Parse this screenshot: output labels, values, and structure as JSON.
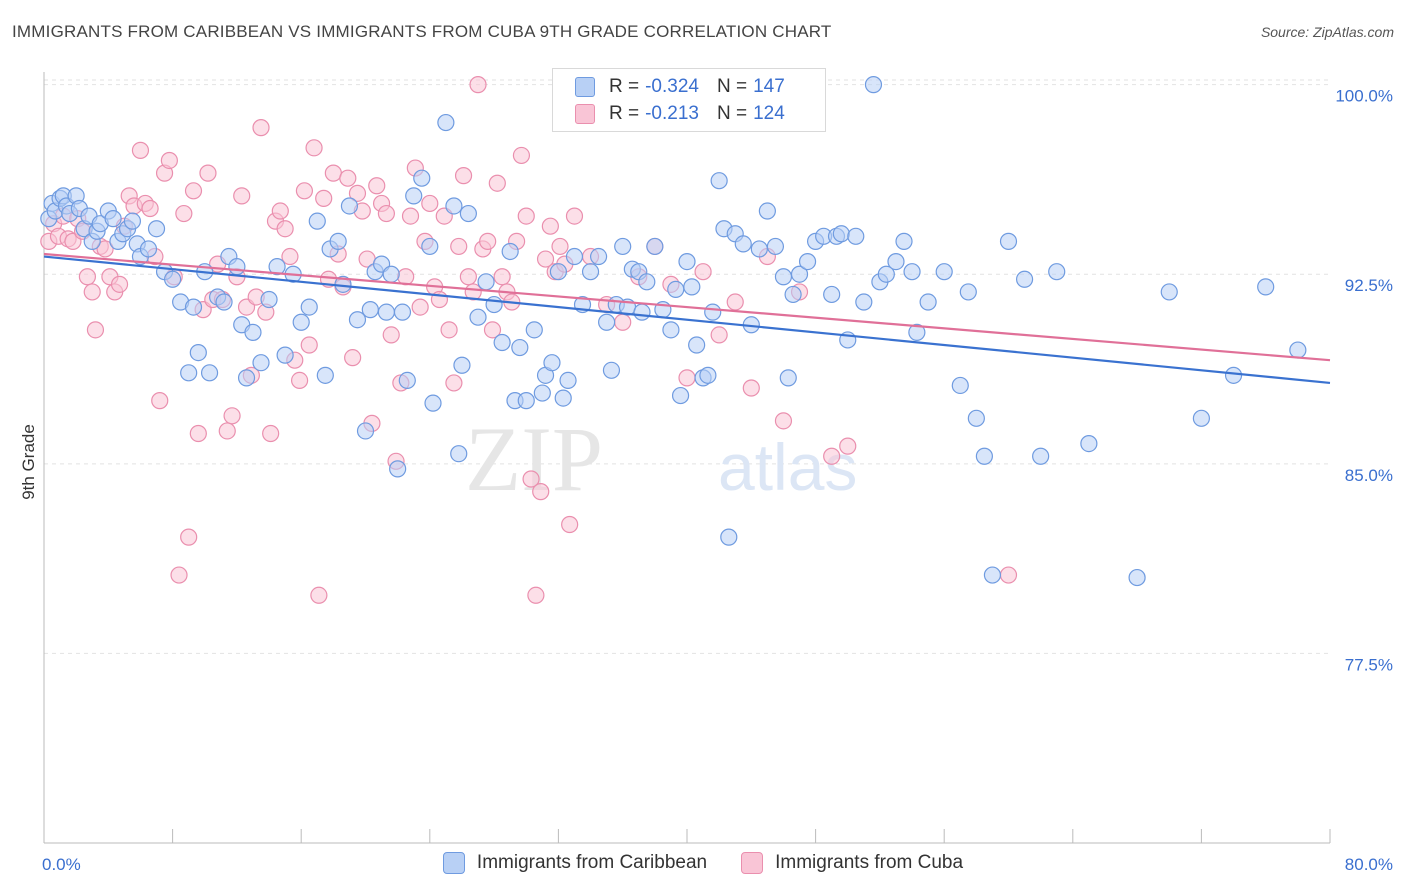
{
  "header": {
    "title": "IMMIGRANTS FROM CARIBBEAN VS IMMIGRANTS FROM CUBA 9TH GRADE CORRELATION CHART",
    "source": "Source: ZipAtlas.com"
  },
  "legend": {
    "r_label": "R =",
    "n_label": "N =",
    "series": [
      {
        "r": "-0.324",
        "n": "147"
      },
      {
        "r": "-0.213",
        "n": "124"
      }
    ]
  },
  "watermark": {
    "zip": "ZIP",
    "atlas": "atlas"
  },
  "colors": {
    "blue_fill": "#b8d0f5",
    "blue_stroke": "#6f9be0",
    "blue_line": "#3a72d0",
    "pink_fill": "#f9c5d6",
    "pink_stroke": "#ea8fae",
    "pink_line": "#e07098",
    "tick_label": "#3a6fcf"
  },
  "chart_data": {
    "type": "scatter",
    "title": "IMMIGRANTS FROM CARIBBEAN VS IMMIGRANTS FROM CUBA 9TH GRADE CORRELATION CHART",
    "xlabel": "",
    "ylabel": "9th Grade",
    "xlim": [
      0,
      80
    ],
    "ylim": [
      70.0,
      100.5
    ],
    "x_tick_labels": [
      "0.0%",
      "80.0%"
    ],
    "y_ticks": [
      77.5,
      85.0,
      92.5,
      100.0
    ],
    "y_tick_labels": [
      "77.5%",
      "85.0%",
      "92.5%",
      "100.0%"
    ],
    "grid": true,
    "legend_position": "top-center",
    "series": [
      {
        "name": "Immigrants from Caribbean",
        "color": "#6f9be0",
        "r": -0.324,
        "n": 147,
        "trend": {
          "x": [
            0,
            80
          ],
          "y": [
            93.2,
            88.2
          ]
        },
        "points": [
          [
            0.3,
            94.7
          ],
          [
            0.5,
            95.3
          ],
          [
            0.7,
            95.0
          ],
          [
            1.0,
            95.5
          ],
          [
            1.2,
            95.6
          ],
          [
            1.4,
            95.2
          ],
          [
            1.6,
            94.9
          ],
          [
            2.0,
            95.6
          ],
          [
            2.2,
            95.1
          ],
          [
            2.5,
            94.3
          ],
          [
            2.8,
            94.8
          ],
          [
            3.0,
            93.8
          ],
          [
            3.3,
            94.2
          ],
          [
            3.5,
            94.5
          ],
          [
            4.0,
            95.0
          ],
          [
            4.3,
            94.7
          ],
          [
            4.6,
            93.8
          ],
          [
            4.9,
            94.1
          ],
          [
            5.2,
            94.3
          ],
          [
            5.5,
            94.6
          ],
          [
            5.8,
            93.7
          ],
          [
            6.0,
            93.2
          ],
          [
            6.5,
            93.5
          ],
          [
            7.0,
            94.3
          ],
          [
            7.5,
            92.6
          ],
          [
            8.0,
            92.3
          ],
          [
            8.5,
            91.4
          ],
          [
            9.0,
            88.6
          ],
          [
            9.3,
            91.2
          ],
          [
            9.6,
            89.4
          ],
          [
            10.0,
            92.6
          ],
          [
            10.3,
            88.6
          ],
          [
            10.8,
            91.6
          ],
          [
            11.2,
            91.4
          ],
          [
            11.5,
            93.2
          ],
          [
            12.0,
            92.8
          ],
          [
            12.3,
            90.5
          ],
          [
            12.6,
            88.4
          ],
          [
            13.0,
            90.2
          ],
          [
            13.5,
            89.0
          ],
          [
            14.0,
            91.5
          ],
          [
            14.5,
            92.8
          ],
          [
            15.0,
            89.3
          ],
          [
            15.5,
            92.5
          ],
          [
            16.0,
            90.6
          ],
          [
            16.5,
            91.2
          ],
          [
            17.0,
            94.6
          ],
          [
            17.5,
            88.5
          ],
          [
            17.8,
            93.5
          ],
          [
            18.3,
            93.8
          ],
          [
            18.6,
            92.1
          ],
          [
            19.0,
            95.2
          ],
          [
            19.5,
            90.7
          ],
          [
            20.0,
            86.3
          ],
          [
            20.3,
            91.1
          ],
          [
            20.6,
            92.6
          ],
          [
            21.0,
            92.9
          ],
          [
            21.3,
            91.0
          ],
          [
            21.6,
            92.5
          ],
          [
            22.0,
            84.8
          ],
          [
            22.3,
            91.0
          ],
          [
            22.6,
            88.3
          ],
          [
            23.0,
            95.6
          ],
          [
            23.5,
            96.3
          ],
          [
            24.0,
            93.6
          ],
          [
            24.2,
            87.4
          ],
          [
            25.0,
            98.5
          ],
          [
            25.5,
            95.2
          ],
          [
            26.0,
            88.9
          ],
          [
            26.4,
            94.9
          ],
          [
            27.0,
            90.8
          ],
          [
            27.5,
            92.2
          ],
          [
            28.0,
            91.3
          ],
          [
            28.5,
            89.8
          ],
          [
            29.0,
            93.4
          ],
          [
            29.3,
            87.5
          ],
          [
            29.6,
            89.6
          ],
          [
            30.0,
            87.5
          ],
          [
            30.5,
            90.3
          ],
          [
            31.0,
            87.8
          ],
          [
            31.2,
            88.5
          ],
          [
            31.6,
            89.0
          ],
          [
            32.0,
            92.6
          ],
          [
            32.3,
            87.6
          ],
          [
            32.6,
            88.3
          ],
          [
            33.0,
            93.2
          ],
          [
            33.5,
            91.3
          ],
          [
            34.0,
            92.6
          ],
          [
            34.5,
            93.2
          ],
          [
            35.0,
            90.6
          ],
          [
            35.3,
            88.7
          ],
          [
            35.6,
            91.3
          ],
          [
            36.0,
            93.6
          ],
          [
            36.3,
            91.2
          ],
          [
            36.6,
            92.7
          ],
          [
            37.0,
            92.6
          ],
          [
            37.2,
            91.0
          ],
          [
            37.5,
            92.2
          ],
          [
            38.0,
            93.6
          ],
          [
            38.5,
            91.1
          ],
          [
            39.0,
            90.3
          ],
          [
            39.3,
            91.9
          ],
          [
            39.6,
            87.7
          ],
          [
            40.0,
            93.0
          ],
          [
            40.3,
            92.0
          ],
          [
            40.6,
            89.7
          ],
          [
            41.0,
            88.4
          ],
          [
            41.3,
            88.5
          ],
          [
            41.6,
            91.0
          ],
          [
            42.0,
            96.2
          ],
          [
            42.3,
            94.3
          ],
          [
            42.6,
            82.1
          ],
          [
            43.0,
            94.1
          ],
          [
            43.5,
            93.7
          ],
          [
            44.0,
            90.5
          ],
          [
            44.5,
            93.5
          ],
          [
            45.0,
            95.0
          ],
          [
            45.5,
            93.6
          ],
          [
            46.0,
            92.4
          ],
          [
            46.3,
            88.4
          ],
          [
            46.6,
            91.7
          ],
          [
            47.0,
            92.5
          ],
          [
            47.5,
            93.0
          ],
          [
            48.0,
            93.8
          ],
          [
            48.5,
            94.0
          ],
          [
            49.0,
            91.7
          ],
          [
            49.3,
            94.0
          ],
          [
            49.6,
            94.1
          ],
          [
            50.0,
            89.9
          ],
          [
            50.5,
            94.0
          ],
          [
            51.0,
            91.4
          ],
          [
            51.6,
            100.0
          ],
          [
            52.0,
            92.2
          ],
          [
            52.4,
            92.5
          ],
          [
            53.0,
            93.0
          ],
          [
            53.5,
            93.8
          ],
          [
            54.0,
            92.6
          ],
          [
            54.3,
            90.2
          ],
          [
            55.0,
            91.4
          ],
          [
            56.0,
            92.6
          ],
          [
            57.0,
            88.1
          ],
          [
            57.5,
            91.8
          ],
          [
            58.0,
            86.8
          ],
          [
            58.5,
            85.3
          ],
          [
            59.0,
            80.6
          ],
          [
            60.0,
            93.8
          ],
          [
            61.0,
            92.3
          ],
          [
            62.0,
            85.3
          ],
          [
            63.0,
            92.6
          ],
          [
            65.0,
            85.8
          ],
          [
            68.0,
            80.5
          ],
          [
            70.0,
            91.8
          ],
          [
            72.0,
            86.8
          ],
          [
            74.0,
            88.5
          ],
          [
            76.0,
            92.0
          ],
          [
            78.0,
            89.5
          ],
          [
            25.8,
            85.4
          ]
        ]
      },
      {
        "name": "Immigrants from Cuba",
        "color": "#ea8fae",
        "r": -0.213,
        "n": 124,
        "trend": {
          "x": [
            0,
            80
          ],
          "y": [
            93.3,
            89.1
          ]
        },
        "points": [
          [
            0.3,
            93.8
          ],
          [
            0.6,
            94.5
          ],
          [
            0.9,
            94.0
          ],
          [
            1.2,
            94.8
          ],
          [
            1.5,
            93.9
          ],
          [
            1.8,
            93.8
          ],
          [
            2.1,
            94.7
          ],
          [
            2.4,
            94.2
          ],
          [
            2.7,
            92.4
          ],
          [
            3.0,
            91.8
          ],
          [
            3.2,
            90.3
          ],
          [
            3.5,
            93.6
          ],
          [
            3.8,
            93.5
          ],
          [
            4.1,
            92.4
          ],
          [
            4.4,
            91.8
          ],
          [
            4.7,
            92.1
          ],
          [
            5.0,
            94.4
          ],
          [
            5.3,
            95.6
          ],
          [
            5.6,
            95.2
          ],
          [
            6.0,
            97.4
          ],
          [
            6.3,
            95.3
          ],
          [
            6.6,
            95.1
          ],
          [
            6.9,
            93.2
          ],
          [
            7.2,
            87.5
          ],
          [
            7.5,
            96.5
          ],
          [
            7.8,
            97.0
          ],
          [
            8.1,
            92.4
          ],
          [
            8.4,
            80.6
          ],
          [
            8.7,
            94.9
          ],
          [
            9.0,
            82.1
          ],
          [
            9.3,
            95.8
          ],
          [
            9.6,
            86.2
          ],
          [
            9.9,
            91.1
          ],
          [
            10.2,
            96.5
          ],
          [
            10.5,
            91.5
          ],
          [
            10.8,
            92.9
          ],
          [
            11.1,
            91.5
          ],
          [
            11.4,
            86.3
          ],
          [
            11.7,
            86.9
          ],
          [
            12.0,
            92.4
          ],
          [
            12.3,
            95.6
          ],
          [
            12.6,
            91.2
          ],
          [
            12.9,
            88.5
          ],
          [
            13.2,
            91.6
          ],
          [
            13.5,
            98.3
          ],
          [
            13.8,
            91.0
          ],
          [
            14.1,
            86.2
          ],
          [
            14.4,
            94.6
          ],
          [
            14.7,
            95.0
          ],
          [
            15.0,
            94.3
          ],
          [
            15.3,
            93.2
          ],
          [
            15.6,
            89.1
          ],
          [
            15.9,
            88.3
          ],
          [
            16.2,
            95.8
          ],
          [
            16.5,
            89.7
          ],
          [
            16.8,
            97.5
          ],
          [
            17.1,
            79.8
          ],
          [
            17.4,
            95.5
          ],
          [
            17.7,
            92.3
          ],
          [
            18.0,
            96.5
          ],
          [
            18.3,
            93.3
          ],
          [
            18.6,
            92.0
          ],
          [
            18.9,
            96.3
          ],
          [
            19.2,
            89.2
          ],
          [
            19.5,
            95.7
          ],
          [
            19.8,
            95.0
          ],
          [
            20.1,
            93.1
          ],
          [
            20.4,
            86.6
          ],
          [
            20.7,
            96.0
          ],
          [
            21.0,
            95.3
          ],
          [
            21.3,
            94.9
          ],
          [
            21.6,
            90.1
          ],
          [
            21.9,
            85.1
          ],
          [
            22.2,
            88.2
          ],
          [
            22.5,
            92.4
          ],
          [
            22.8,
            94.8
          ],
          [
            23.1,
            96.7
          ],
          [
            23.4,
            91.2
          ],
          [
            23.7,
            93.8
          ],
          [
            24.0,
            95.3
          ],
          [
            24.3,
            92.0
          ],
          [
            24.6,
            91.5
          ],
          [
            24.9,
            94.8
          ],
          [
            25.2,
            90.3
          ],
          [
            25.5,
            88.2
          ],
          [
            25.8,
            93.6
          ],
          [
            26.1,
            96.4
          ],
          [
            26.4,
            92.4
          ],
          [
            26.7,
            91.8
          ],
          [
            27.0,
            100.0
          ],
          [
            27.3,
            93.5
          ],
          [
            27.6,
            93.8
          ],
          [
            27.9,
            90.3
          ],
          [
            28.2,
            96.1
          ],
          [
            28.5,
            92.4
          ],
          [
            28.8,
            91.8
          ],
          [
            29.1,
            91.4
          ],
          [
            29.4,
            93.8
          ],
          [
            29.7,
            97.2
          ],
          [
            30.0,
            94.8
          ],
          [
            30.3,
            84.4
          ],
          [
            30.6,
            79.8
          ],
          [
            30.9,
            83.9
          ],
          [
            31.2,
            93.1
          ],
          [
            31.5,
            94.4
          ],
          [
            31.8,
            92.6
          ],
          [
            32.1,
            93.6
          ],
          [
            32.4,
            92.9
          ],
          [
            32.7,
            82.6
          ],
          [
            33.0,
            94.8
          ],
          [
            34.0,
            93.2
          ],
          [
            35.0,
            91.3
          ],
          [
            36.0,
            90.6
          ],
          [
            37.0,
            92.4
          ],
          [
            38.0,
            93.6
          ],
          [
            39.0,
            92.1
          ],
          [
            40.0,
            88.4
          ],
          [
            41.0,
            92.6
          ],
          [
            42.0,
            90.1
          ],
          [
            43.0,
            91.4
          ],
          [
            44.0,
            88.0
          ],
          [
            45.0,
            93.2
          ],
          [
            46.0,
            86.7
          ],
          [
            47.0,
            91.8
          ],
          [
            48.0,
            100.0
          ],
          [
            49.0,
            85.3
          ],
          [
            50.0,
            85.7
          ],
          [
            60.0,
            80.6
          ]
        ]
      }
    ]
  }
}
